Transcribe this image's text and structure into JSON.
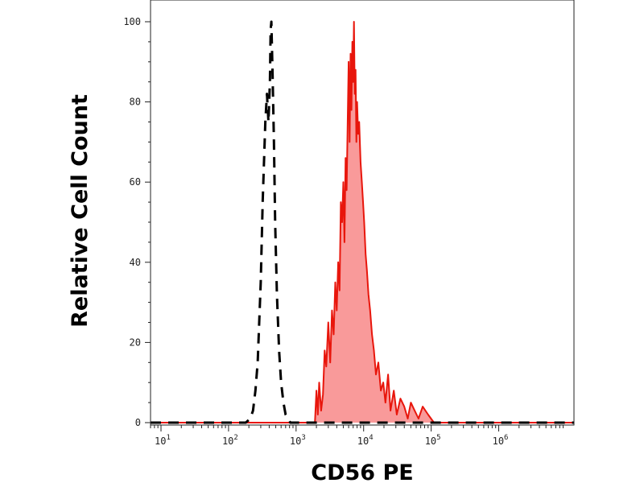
{
  "chart_data": {
    "type": "area",
    "xlabel": "CD56 PE",
    "ylabel": "Relative Cell Count",
    "x_scale": "log",
    "xlim": [
      7,
      13000000
    ],
    "ylim": [
      0,
      100
    ],
    "x_ticks": [
      {
        "base": "10",
        "exp": "1",
        "value": 10
      },
      {
        "base": "10",
        "exp": "2",
        "value": 100
      },
      {
        "base": "10",
        "exp": "3",
        "value": 1000
      },
      {
        "base": "10",
        "exp": "4",
        "value": 10000
      },
      {
        "base": "10",
        "exp": "5",
        "value": 100000
      },
      {
        "base": "10",
        "exp": "6",
        "value": 1000000
      }
    ],
    "y_ticks": [
      0,
      20,
      40,
      60,
      80,
      100
    ],
    "grid": false,
    "legend": false,
    "series": [
      {
        "style": "dashed",
        "color": "#000000",
        "fill": "none",
        "x": [
          7,
          180,
          210,
          230,
          250,
          270,
          300,
          320,
          350,
          370,
          390,
          410,
          420,
          430,
          450,
          470,
          490,
          520,
          560,
          600,
          650,
          700,
          760,
          820,
          1000,
          13000000
        ],
        "values": [
          0,
          0,
          1,
          3,
          8,
          15,
          35,
          55,
          75,
          82,
          75,
          85,
          98,
          100,
          86,
          70,
          50,
          32,
          18,
          10,
          5,
          2,
          1,
          0,
          0,
          0
        ]
      },
      {
        "style": "solid",
        "color": "#e8160c",
        "fill": "#f99a9a",
        "x": [
          7,
          1900,
          2000,
          2100,
          2200,
          2350,
          2500,
          2650,
          2800,
          3000,
          3200,
          3400,
          3600,
          3800,
          4000,
          4200,
          4400,
          4600,
          4800,
          5000,
          5200,
          5400,
          5600,
          5800,
          6000,
          6200,
          6400,
          6600,
          6800,
          7000,
          7200,
          7400,
          7600,
          7800,
          8000,
          8300,
          8600,
          9000,
          9400,
          9800,
          10200,
          10700,
          11200,
          11800,
          12500,
          13300,
          14200,
          15200,
          16500,
          18000,
          19500,
          21000,
          23000,
          25000,
          28000,
          31000,
          35000,
          40000,
          45000,
          50000,
          57000,
          65000,
          75000,
          90000,
          110000,
          13000000
        ],
        "values": [
          0,
          0,
          8,
          2,
          10,
          3,
          7,
          18,
          14,
          25,
          15,
          28,
          22,
          35,
          28,
          40,
          33,
          55,
          50,
          60,
          45,
          66,
          58,
          75,
          90,
          70,
          92,
          78,
          95,
          85,
          100,
          82,
          88,
          70,
          80,
          72,
          75,
          65,
          60,
          55,
          50,
          42,
          38,
          32,
          28,
          22,
          18,
          12,
          15,
          8,
          10,
          5,
          12,
          3,
          8,
          2,
          6,
          4,
          1,
          5,
          3,
          1,
          4,
          2,
          0,
          0
        ]
      }
    ]
  }
}
